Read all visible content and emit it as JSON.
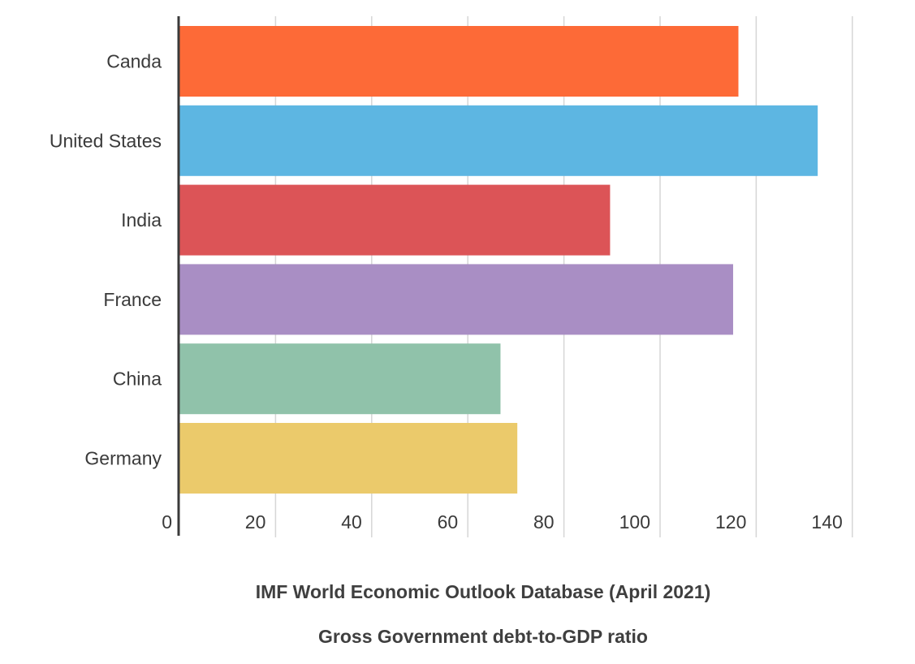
{
  "chart_data": {
    "type": "bar",
    "orientation": "horizontal",
    "categories": [
      "Canda",
      "United States",
      "India",
      "France",
      "China",
      "Germany"
    ],
    "values": [
      116.3,
      132.8,
      89.6,
      115.2,
      66.8,
      70.3
    ],
    "colors": [
      "#fd6a37",
      "#5db6e2",
      "#dc5457",
      "#a98ec4",
      "#90c2aa",
      "#ebca6b"
    ],
    "xlim": [
      0,
      140
    ],
    "xticks": [
      0,
      20,
      40,
      60,
      80,
      100,
      120,
      140
    ],
    "grid": true,
    "legend": "none",
    "source": "IMF World Economic Outlook Database (April 2021)",
    "subtitle": "Gross Government debt-to-GDP ratio"
  }
}
